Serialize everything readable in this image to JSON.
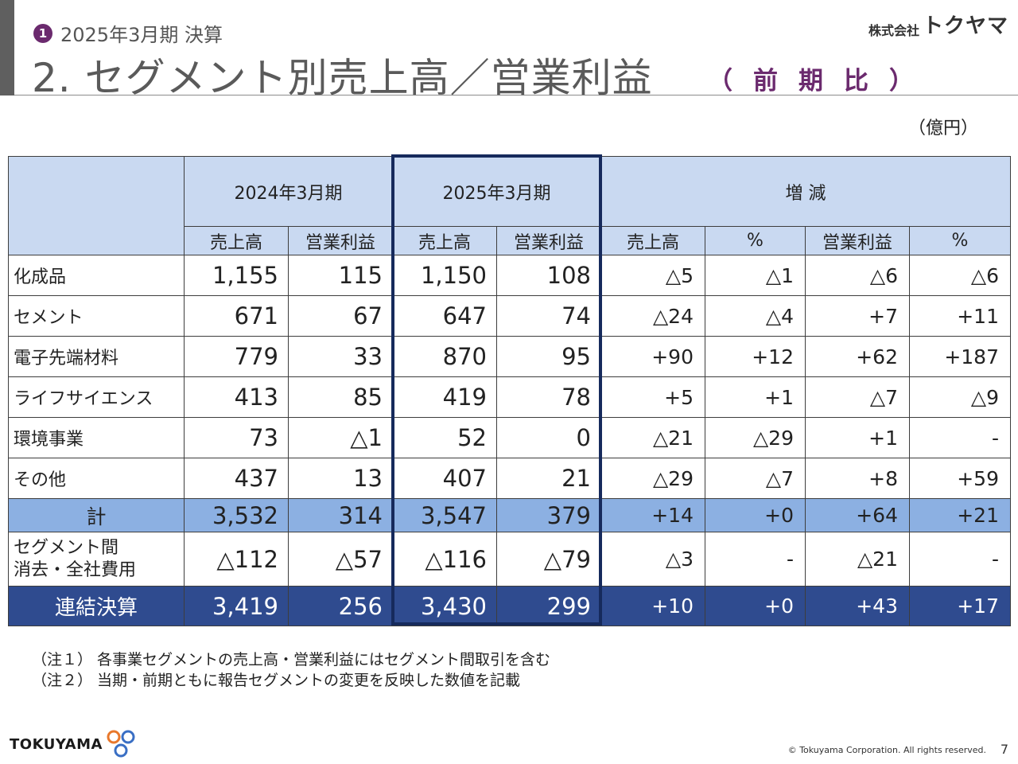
{
  "header": {
    "badge": "1",
    "kicker": "2025年3月期 決算",
    "title": "2. セグメント別売上高／営業利益",
    "title_note": "（前期比）",
    "brand_prefix": "株式会社",
    "brand_name": "トクヤマ"
  },
  "unit": "（億円）",
  "table": {
    "group_headers": [
      "2024年3月期",
      "2025年3月期",
      "増 減"
    ],
    "sub_headers": [
      "売上高",
      "営業利益",
      "売上高",
      "営業利益",
      "売上高",
      "%",
      "営業利益",
      "%"
    ],
    "rows": [
      {
        "label": "化成品",
        "values": [
          "1,155",
          "115",
          "1,150",
          "108",
          "△5",
          "△1",
          "△6",
          "△6"
        ]
      },
      {
        "label": "セメント",
        "values": [
          "671",
          "67",
          "647",
          "74",
          "△24",
          "△4",
          "+7",
          "+11"
        ]
      },
      {
        "label": "電子先端材料",
        "values": [
          "779",
          "33",
          "870",
          "95",
          "+90",
          "+12",
          "+62",
          "+187"
        ]
      },
      {
        "label": "ライフサイエンス",
        "values": [
          "413",
          "85",
          "419",
          "78",
          "+5",
          "+1",
          "△7",
          "△9"
        ]
      },
      {
        "label": "環境事業",
        "values": [
          "73",
          "△1",
          "52",
          "0",
          "△21",
          "△29",
          "+1",
          "-"
        ]
      },
      {
        "label": "その他",
        "values": [
          "437",
          "13",
          "407",
          "21",
          "△29",
          "△7",
          "+8",
          "+59"
        ]
      }
    ],
    "total": {
      "label": "計",
      "values": [
        "3,532",
        "314",
        "3,547",
        "379",
        "+14",
        "+0",
        "+64",
        "+21"
      ]
    },
    "elimination": {
      "label_line1": "セグメント間",
      "label_line2": "消去・全社費用",
      "values": [
        "△112",
        "△57",
        "△116",
        "△79",
        "△3",
        "-",
        "△21",
        "-"
      ]
    },
    "consolidated": {
      "label": "連結決算",
      "values": [
        "3,419",
        "256",
        "3,430",
        "299",
        "+10",
        "+0",
        "+43",
        "+17"
      ]
    }
  },
  "notes": [
    "（注１） 各事業セグメントの売上高・営業利益にはセグメント間取引を含む",
    "（注２） 当期・前期ともに報告セグメントの変更を反映した数値を記載"
  ],
  "footer": {
    "logo_text": "TOKUYAMA",
    "copyright": "© Tokuyama Corporation. All rights reserved.",
    "page": "7"
  },
  "colors": {
    "header_fill": "#c9d9f1",
    "total_fill": "#8cb0e2",
    "consolidated_fill": "#2f4b8f",
    "highlight_border": "#162a5c",
    "accent_purple": "#6b2a6e"
  }
}
